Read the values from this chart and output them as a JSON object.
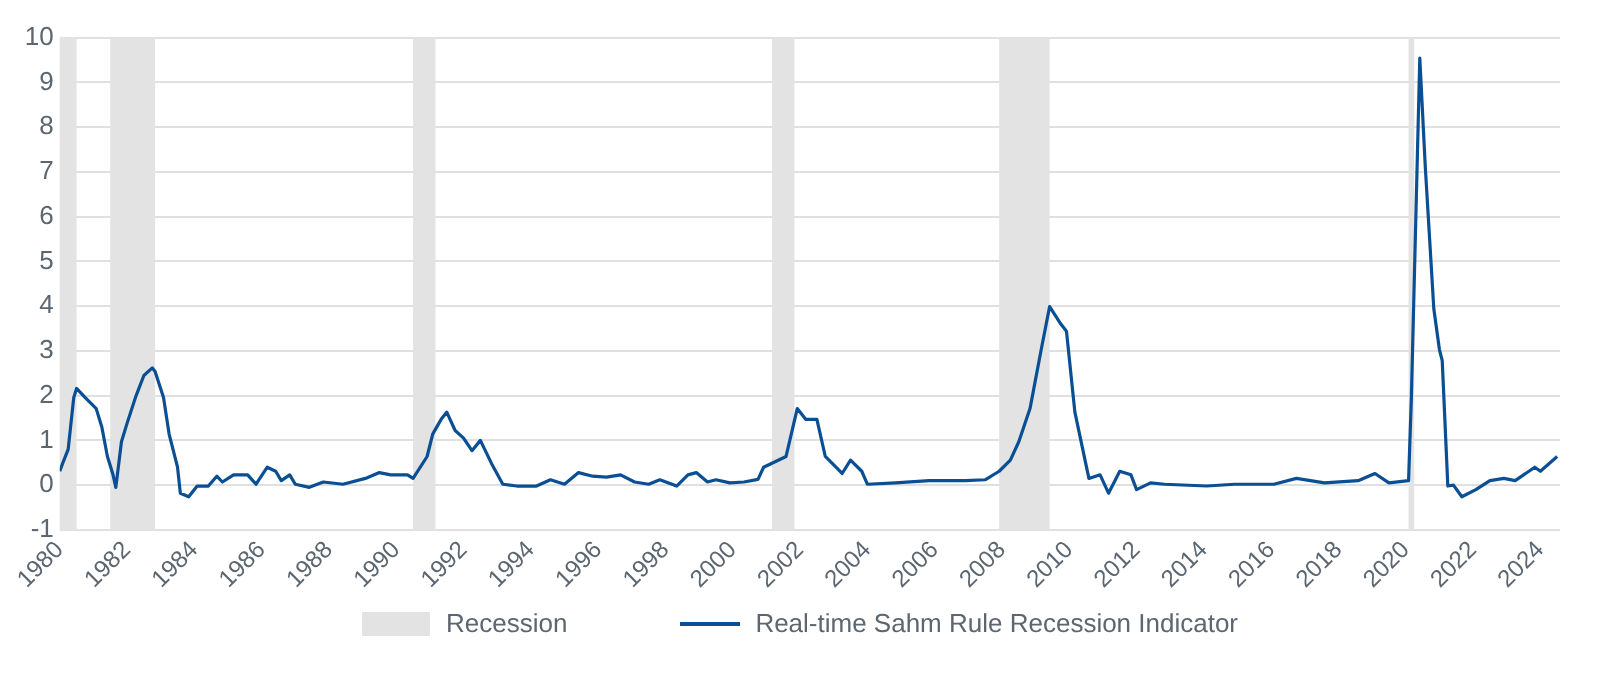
{
  "chart_data": {
    "type": "line",
    "xlim": [
      "1980-01",
      "2024-08"
    ],
    "xticks": [
      "1980",
      "1982",
      "1984",
      "1986",
      "1988",
      "1990",
      "1992",
      "1994",
      "1996",
      "1998",
      "2000",
      "2002",
      "2004",
      "2006",
      "2008",
      "2010",
      "2012",
      "2014",
      "2016",
      "2018",
      "2020",
      "2022",
      "2024"
    ],
    "ylim": [
      -1,
      10
    ],
    "yticks": [
      -1,
      0,
      1,
      2,
      3,
      4,
      5,
      6,
      7,
      8,
      9,
      10
    ],
    "grid": "y",
    "legend": "bottom",
    "bands": [
      {
        "axis": "x",
        "from": "1980-01",
        "to": "1980-07",
        "label": "Recession",
        "color": "#e3e3e3"
      },
      {
        "axis": "x",
        "from": "1981-07",
        "to": "1982-11",
        "color": "#e3e3e3"
      },
      {
        "axis": "x",
        "from": "1990-07",
        "to": "1991-03",
        "color": "#e3e3e3"
      },
      {
        "axis": "x",
        "from": "2001-03",
        "to": "2001-11",
        "color": "#e3e3e3"
      },
      {
        "axis": "x",
        "from": "2007-12",
        "to": "2009-06",
        "color": "#e3e3e3"
      },
      {
        "axis": "x",
        "from": "2020-02",
        "to": "2020-04",
        "color": "#e3e3e3"
      }
    ],
    "series": [
      {
        "name": "Real-time Sahm Rule Recession Indicator",
        "color": "#0a4f94",
        "x": [
          "1980-01",
          "1980-02",
          "1980-04",
          "1980-06",
          "1980-07",
          "1980-10",
          "1981-02",
          "1981-04",
          "1981-06",
          "1981-08",
          "1981-09",
          "1981-11",
          "1982-01",
          "1982-04",
          "1982-07",
          "1982-10",
          "1982-11",
          "1983-02",
          "1983-04",
          "1983-07",
          "1983-08",
          "1983-11",
          "1984-02",
          "1984-06",
          "1984-09",
          "1984-11",
          "1985-03",
          "1985-08",
          "1985-11",
          "1986-03",
          "1986-06",
          "1986-08",
          "1986-11",
          "1987-01",
          "1987-06",
          "1987-11",
          "1988-06",
          "1989-02",
          "1989-07",
          "1989-11",
          "1990-05",
          "1990-07",
          "1990-12",
          "1991-02",
          "1991-05",
          "1991-07",
          "1991-10",
          "1992-01",
          "1992-04",
          "1992-07",
          "1992-11",
          "1993-03",
          "1993-08",
          "1994-03",
          "1994-08",
          "1995-01",
          "1995-06",
          "1995-11",
          "1996-04",
          "1996-09",
          "1997-02",
          "1997-07",
          "1997-11",
          "1998-05",
          "1998-09",
          "1998-12",
          "1999-04",
          "1999-07",
          "1999-12",
          "2000-05",
          "2000-10",
          "2000-12",
          "2001-08",
          "2001-12",
          "2002-03",
          "2002-07",
          "2002-10",
          "2003-04",
          "2003-07",
          "2003-11",
          "2004-01",
          "2004-11",
          "2005-11",
          "2006-12",
          "2007-07",
          "2007-12",
          "2008-04",
          "2008-07",
          "2008-11",
          "2009-03",
          "2009-06",
          "2009-10",
          "2009-12",
          "2010-03",
          "2010-08",
          "2010-12",
          "2011-03",
          "2011-07",
          "2011-11",
          "2012-01",
          "2012-06",
          "2012-11",
          "2014-02",
          "2014-12",
          "2016-02",
          "2016-10",
          "2017-08",
          "2018-08",
          "2019-02",
          "2019-07",
          "2020-02",
          "2020-03",
          "2020-06",
          "2020-08",
          "2020-11",
          "2021-01",
          "2021-02",
          "2021-04",
          "2021-06",
          "2021-09",
          "2022-02",
          "2022-07",
          "2022-12",
          "2023-04",
          "2023-11",
          "2024-01",
          "2024-07"
        ],
        "values": [
          0.31,
          0.48,
          0.8,
          1.96,
          2.16,
          1.96,
          1.71,
          1.3,
          0.64,
          0.23,
          -0.05,
          0.97,
          1.38,
          1.96,
          2.45,
          2.62,
          2.54,
          1.96,
          1.14,
          0.4,
          -0.18,
          -0.26,
          -0.02,
          -0.02,
          0.2,
          0.07,
          0.23,
          0.23,
          0.02,
          0.4,
          0.31,
          0.1,
          0.23,
          0.02,
          -0.05,
          0.07,
          0.02,
          0.15,
          0.28,
          0.23,
          0.23,
          0.15,
          0.64,
          1.14,
          1.47,
          1.63,
          1.22,
          1.05,
          0.77,
          1.0,
          0.48,
          0.02,
          -0.02,
          -0.02,
          0.12,
          0.02,
          0.28,
          0.2,
          0.18,
          0.23,
          0.07,
          0.02,
          0.12,
          -0.02,
          0.23,
          0.28,
          0.07,
          0.12,
          0.05,
          0.07,
          0.13,
          0.4,
          0.64,
          1.71,
          1.47,
          1.47,
          0.64,
          0.26,
          0.56,
          0.31,
          0.02,
          0.05,
          0.1,
          0.1,
          0.12,
          0.31,
          0.56,
          0.97,
          1.71,
          3.03,
          3.99,
          3.6,
          3.44,
          1.63,
          0.15,
          0.23,
          -0.18,
          0.31,
          0.23,
          -0.1,
          0.05,
          0.02,
          -0.02,
          0.02,
          0.02,
          0.15,
          0.05,
          0.1,
          0.26,
          0.05,
          0.1,
          1.96,
          9.54,
          7.07,
          3.94,
          3.03,
          2.78,
          -0.02,
          0.0,
          -0.26,
          -0.1,
          0.1,
          0.15,
          0.1,
          0.4,
          0.31,
          0.64
        ]
      }
    ]
  }
}
